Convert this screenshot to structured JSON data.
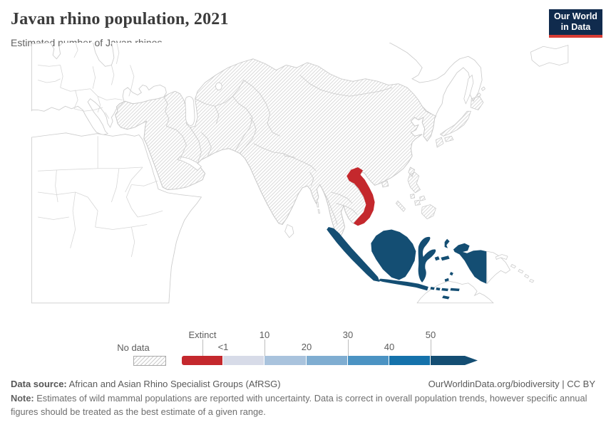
{
  "header": {
    "title": "Javan rhino population, 2021",
    "subtitle": "Estimated number of Javan rhinos.",
    "logo": {
      "line1": "Our World",
      "line2": "in Data",
      "bg_color": "#102b4d",
      "accent_color": "#d73c34"
    }
  },
  "chart_data": {
    "type": "choropleth_map",
    "title": "Javan rhino population, 2021",
    "subtitle": "Estimated number of Javan rhinos.",
    "unit": "Javan rhinos",
    "values": [
      {
        "entity": "Vietnam",
        "value": "Extinct"
      },
      {
        "entity": "Indonesia",
        "value": "50+"
      }
    ],
    "no_data_note": "Hatched countries across Asia have no data; other regions drawn as plain outlines",
    "legend": {
      "no_data_label": "No data",
      "labels_top": [
        "Extinct",
        "10",
        "30",
        "50"
      ],
      "labels_bottom": [
        "<1",
        "20",
        "40"
      ],
      "bin_labels": [
        "Extinct",
        "<1",
        "10",
        "20",
        "30",
        "40",
        "50"
      ],
      "colors": [
        "#c4282d",
        "#d7dbe8",
        "#a9c3dd",
        "#7fadd1",
        "#4b93c3",
        "#1572ab",
        "#144e73"
      ],
      "hatch_color": "#d6d6d6"
    }
  },
  "map": {
    "land_color": "#ffffff",
    "border_color": "#cccccc"
  },
  "footer": {
    "source_label": "Data source:",
    "source_text": " African and Asian Rhino Specialist Groups (AfRSG)",
    "attribution": "OurWorldinData.org/biodiversity | CC BY",
    "note_label": "Note:",
    "note_text": " Estimates of wild mammal populations are reported with uncertainty. Data is correct in overall population trends, however specific annual figures should be treated as the best estimate of a given range."
  }
}
